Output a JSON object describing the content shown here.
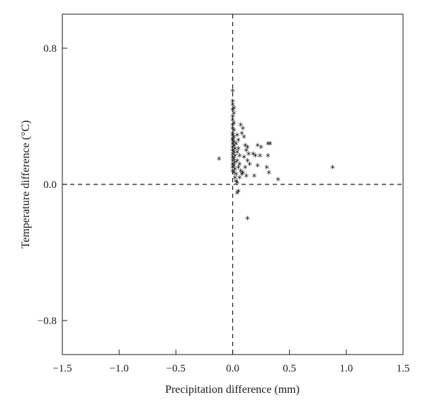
{
  "chart_data": {
    "type": "scatter",
    "title": "",
    "xlabel": "Precipitation difference (mm)",
    "ylabel": "Temperature difference (°C)",
    "xlim": [
      -1.5,
      1.5
    ],
    "ylim": [
      -1.0,
      1.0
    ],
    "xticks": [
      -1.5,
      -1.0,
      -0.5,
      0.0,
      0.5,
      1.0,
      1.5
    ],
    "xtick_labels": [
      "−1.5",
      "−1.0",
      "−0.5",
      "0.0",
      "0.5",
      "1.0",
      "1.5"
    ],
    "yticks": [
      -0.8,
      0.0,
      0.8
    ],
    "ytick_labels": [
      "−0.8",
      "0.0",
      "0.8"
    ],
    "grid": false,
    "reference_lines": {
      "x": 0.0,
      "y": 0.0,
      "style": "dashed"
    },
    "marker": "*",
    "marker_color": "#111111",
    "points": [
      {
        "x": 0.0,
        "y": 0.56
      },
      {
        "x": 0.0,
        "y": 0.5
      },
      {
        "x": 0.0,
        "y": 0.48
      },
      {
        "x": 0.01,
        "y": 0.46
      },
      {
        "x": 0.0,
        "y": 0.45
      },
      {
        "x": 0.01,
        "y": 0.43
      },
      {
        "x": 0.0,
        "y": 0.41
      },
      {
        "x": 0.0,
        "y": 0.39
      },
      {
        "x": 0.01,
        "y": 0.37
      },
      {
        "x": 0.0,
        "y": 0.36
      },
      {
        "x": 0.0,
        "y": 0.34
      },
      {
        "x": 0.01,
        "y": 0.33
      },
      {
        "x": 0.0,
        "y": 0.31
      },
      {
        "x": 0.0,
        "y": 0.3
      },
      {
        "x": 0.01,
        "y": 0.29
      },
      {
        "x": 0.0,
        "y": 0.28
      },
      {
        "x": 0.0,
        "y": 0.27
      },
      {
        "x": 0.01,
        "y": 0.26
      },
      {
        "x": 0.0,
        "y": 0.25
      },
      {
        "x": 0.01,
        "y": 0.24
      },
      {
        "x": 0.0,
        "y": 0.23
      },
      {
        "x": 0.02,
        "y": 0.22
      },
      {
        "x": 0.0,
        "y": 0.21
      },
      {
        "x": 0.01,
        "y": 0.2
      },
      {
        "x": 0.0,
        "y": 0.19
      },
      {
        "x": 0.02,
        "y": 0.18
      },
      {
        "x": 0.0,
        "y": 0.17
      },
      {
        "x": 0.01,
        "y": 0.16
      },
      {
        "x": 0.0,
        "y": 0.15
      },
      {
        "x": 0.02,
        "y": 0.14
      },
      {
        "x": 0.0,
        "y": 0.13
      },
      {
        "x": 0.01,
        "y": 0.12
      },
      {
        "x": 0.0,
        "y": 0.11
      },
      {
        "x": 0.02,
        "y": 0.1
      },
      {
        "x": 0.0,
        "y": 0.09
      },
      {
        "x": 0.01,
        "y": 0.08
      },
      {
        "x": 0.03,
        "y": 0.07
      },
      {
        "x": 0.02,
        "y": 0.05
      },
      {
        "x": 0.03,
        "y": 0.03
      },
      {
        "x": 0.04,
        "y": 0.02
      },
      {
        "x": 0.04,
        "y": 0.3
      },
      {
        "x": 0.05,
        "y": 0.27
      },
      {
        "x": 0.03,
        "y": 0.25
      },
      {
        "x": 0.05,
        "y": 0.22
      },
      {
        "x": 0.04,
        "y": 0.2
      },
      {
        "x": 0.06,
        "y": 0.18
      },
      {
        "x": 0.04,
        "y": 0.15
      },
      {
        "x": 0.06,
        "y": 0.13
      },
      {
        "x": 0.05,
        "y": 0.11
      },
      {
        "x": 0.07,
        "y": 0.09
      },
      {
        "x": 0.08,
        "y": 0.07
      },
      {
        "x": 0.06,
        "y": 0.05
      },
      {
        "x": 0.07,
        "y": 0.36
      },
      {
        "x": 0.09,
        "y": 0.34
      },
      {
        "x": 0.08,
        "y": 0.31
      },
      {
        "x": 0.1,
        "y": 0.29
      },
      {
        "x": 0.11,
        "y": 0.24
      },
      {
        "x": 0.13,
        "y": 0.23
      },
      {
        "x": 0.12,
        "y": 0.21
      },
      {
        "x": 0.14,
        "y": 0.19
      },
      {
        "x": 0.1,
        "y": 0.17
      },
      {
        "x": 0.13,
        "y": 0.15
      },
      {
        "x": 0.15,
        "y": 0.13
      },
      {
        "x": 0.11,
        "y": 0.11
      },
      {
        "x": 0.09,
        "y": 0.08
      },
      {
        "x": 0.12,
        "y": 0.06
      },
      {
        "x": 0.18,
        "y": 0.19
      },
      {
        "x": 0.2,
        "y": 0.18
      },
      {
        "x": 0.22,
        "y": 0.24
      },
      {
        "x": 0.25,
        "y": 0.23
      },
      {
        "x": 0.24,
        "y": 0.18
      },
      {
        "x": 0.22,
        "y": 0.12
      },
      {
        "x": 0.19,
        "y": 0.06
      },
      {
        "x": 0.31,
        "y": 0.25
      },
      {
        "x": 0.33,
        "y": 0.25
      },
      {
        "x": 0.31,
        "y": 0.18
      },
      {
        "x": 0.3,
        "y": 0.11
      },
      {
        "x": 0.32,
        "y": 0.08
      },
      {
        "x": 0.4,
        "y": 0.04
      },
      {
        "x": 0.88,
        "y": 0.11
      },
      {
        "x": -0.12,
        "y": 0.16
      },
      {
        "x": 0.04,
        "y": -0.04
      },
      {
        "x": 0.05,
        "y": -0.03
      },
      {
        "x": 0.13,
        "y": -0.19
      }
    ]
  }
}
